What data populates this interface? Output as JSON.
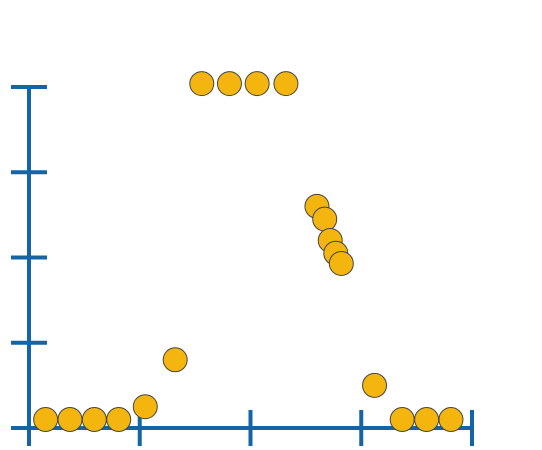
{
  "chart_data": {
    "type": "scatter",
    "title": "",
    "xlabel": "",
    "ylabel": "",
    "grid": false,
    "legend": "none",
    "xlim": [
      0,
      4
    ],
    "ylim": [
      0,
      4
    ],
    "x_ticks": [
      0,
      1,
      2,
      3,
      4
    ],
    "y_ticks": [
      0,
      1,
      2,
      3,
      4
    ],
    "colors": {
      "axis": "#1565a6",
      "point_fill": "#f5b50f",
      "point_stroke": "#444444"
    },
    "series": [
      {
        "points": [
          {
            "x": 0.15,
            "y": 0.1
          },
          {
            "x": 0.37,
            "y": 0.1
          },
          {
            "x": 0.59,
            "y": 0.1
          },
          {
            "x": 0.81,
            "y": 0.1
          },
          {
            "x": 1.05,
            "y": 0.25
          },
          {
            "x": 1.32,
            "y": 0.8
          },
          {
            "x": 1.56,
            "y": 4.04
          },
          {
            "x": 1.81,
            "y": 4.04
          },
          {
            "x": 2.06,
            "y": 4.04
          },
          {
            "x": 2.32,
            "y": 4.04
          },
          {
            "x": 2.6,
            "y": 2.6
          },
          {
            "x": 2.67,
            "y": 2.45
          },
          {
            "x": 2.72,
            "y": 2.2
          },
          {
            "x": 2.77,
            "y": 2.05
          },
          {
            "x": 2.82,
            "y": 1.93
          },
          {
            "x": 3.12,
            "y": 0.5
          },
          {
            "x": 3.37,
            "y": 0.1
          },
          {
            "x": 3.59,
            "y": 0.1
          },
          {
            "x": 3.81,
            "y": 0.1
          }
        ]
      }
    ]
  }
}
